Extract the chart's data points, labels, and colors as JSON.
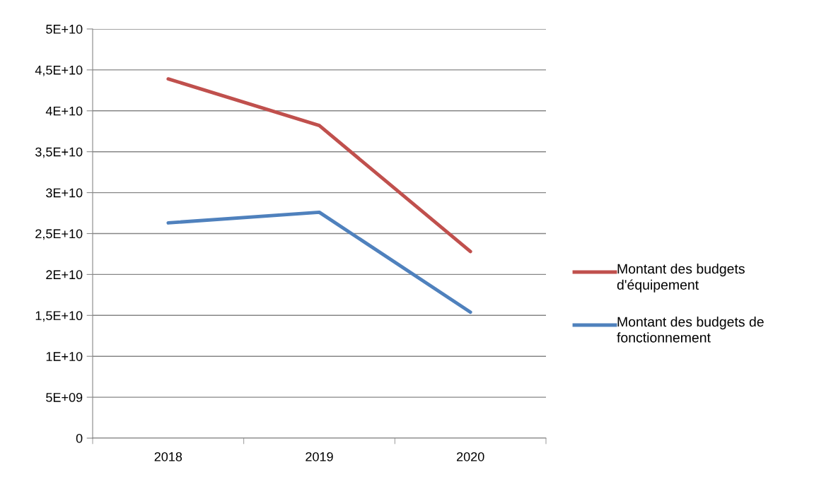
{
  "chart_data": {
    "type": "line",
    "categories": [
      "2018",
      "2019",
      "2020"
    ],
    "series": [
      {
        "name": "Montant des budgets d'équipement",
        "color": "#c0504d",
        "values": [
          43900000000,
          38200000000,
          22800000000
        ]
      },
      {
        "name": "Montant des budgets de fonctionnement",
        "color": "#4f81bd",
        "values": [
          26300000000,
          27600000000,
          15400000000
        ]
      }
    ],
    "ylim": [
      0,
      50000000000
    ],
    "yticks": [
      0,
      {
        "value": 5000000000,
        "label": "5E+09"
      },
      {
        "value": 10000000000,
        "label": "1E+10"
      },
      {
        "value": 15000000000,
        "label": "1,5E+10"
      },
      {
        "value": 20000000000,
        "label": "2E+10"
      },
      {
        "value": 25000000000,
        "label": "2,5E+10"
      },
      {
        "value": 30000000000,
        "label": "3E+10"
      },
      {
        "value": 35000000000,
        "label": "3,5E+10"
      },
      {
        "value": 40000000000,
        "label": "4E+10"
      },
      {
        "value": 45000000000,
        "label": "4,5E+10"
      },
      {
        "value": 50000000000,
        "label": "5E+10"
      }
    ],
    "grid": "y",
    "legend": "right",
    "marker": "none",
    "line_style": "solid"
  }
}
